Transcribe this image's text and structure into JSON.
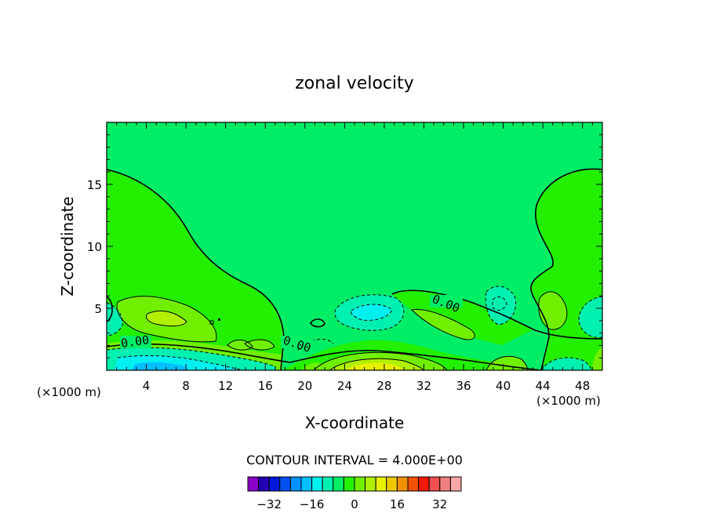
{
  "chart_data": {
    "type": "contour",
    "title": "zonal velocity",
    "xlabel": "X-coordinate",
    "ylabel": "Z-coordinate",
    "x_unit_note_left": "(×1000 m)",
    "x_unit_note_right": "(×1000 m)",
    "xlim": [
      0,
      50
    ],
    "ylim": [
      0,
      20
    ],
    "xticks": [
      4,
      8,
      12,
      16,
      20,
      24,
      28,
      32,
      36,
      40,
      44,
      48
    ],
    "yticks": [
      5,
      10,
      15
    ],
    "contour_labels": [
      "0.00",
      "0.00",
      "0.00"
    ],
    "contour_interval_text": "CONTOUR INTERVAL = 4.000E+00",
    "colorbar": {
      "levels": [
        -36,
        -32,
        -28,
        -24,
        -20,
        -16,
        -12,
        -8,
        -4,
        0,
        4,
        8,
        12,
        16,
        20,
        24,
        28,
        32,
        36
      ],
      "tick_labels": [
        "-32",
        "-16",
        "0",
        "16",
        "32"
      ],
      "colors": [
        "#8a00c8",
        "#2200b0",
        "#0018d8",
        "#0050f0",
        "#0090ff",
        "#00c0ff",
        "#00f0f0",
        "#00f0b0",
        "#00ee66",
        "#22f000",
        "#70f000",
        "#b0f000",
        "#e8f000",
        "#f0c800",
        "#f09000",
        "#f05000",
        "#f01800",
        "#f05050",
        "#f08080",
        "#f8a8a8"
      ]
    },
    "field_colors": {
      "v0": "#00ee66",
      "v4": "#22f000",
      "v8": "#70f000",
      "v12": "#b0f000",
      "v16": "#e8f000",
      "vm4": "#00f0b0",
      "vm8": "#00f0f0",
      "vm12": "#00c0ff"
    }
  }
}
